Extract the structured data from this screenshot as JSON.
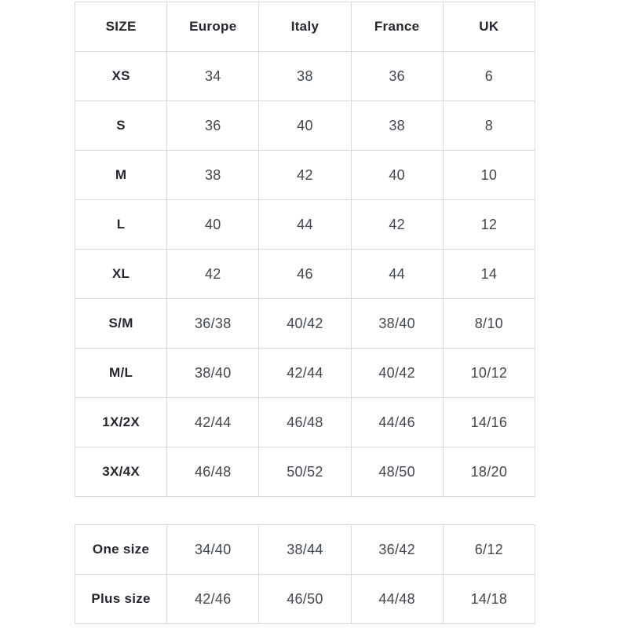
{
  "size_chart": {
    "headers": [
      "SIZE",
      "Europe",
      "Italy",
      "France",
      "UK"
    ],
    "main_rows": [
      {
        "label": "XS",
        "values": [
          "34",
          "38",
          "36",
          "6"
        ]
      },
      {
        "label": "S",
        "values": [
          "36",
          "40",
          "38",
          "8"
        ]
      },
      {
        "label": "M",
        "values": [
          "38",
          "42",
          "40",
          "10"
        ]
      },
      {
        "label": "L",
        "values": [
          "40",
          "44",
          "42",
          "12"
        ]
      },
      {
        "label": "XL",
        "values": [
          "42",
          "46",
          "44",
          "14"
        ]
      },
      {
        "label": "S/M",
        "values": [
          "36/38",
          "40/42",
          "38/40",
          "8/10"
        ]
      },
      {
        "label": "M/L",
        "values": [
          "38/40",
          "42/44",
          "40/42",
          "10/12"
        ]
      },
      {
        "label": "1X/2X",
        "values": [
          "42/44",
          "46/48",
          "44/46",
          "14/16"
        ]
      },
      {
        "label": "3X/4X",
        "values": [
          "46/48",
          "50/52",
          "48/50",
          "18/20"
        ]
      }
    ],
    "extra_rows": [
      {
        "label": "One size",
        "values": [
          "34/40",
          "38/44",
          "36/42",
          "6/12"
        ]
      },
      {
        "label": "Plus size",
        "values": [
          "42/46",
          "46/50",
          "44/48",
          "14/18"
        ]
      }
    ]
  },
  "colors": {
    "border": "#d9d9d9",
    "header_text": "#24272e",
    "value_text": "#42464e",
    "background": "#ffffff"
  }
}
